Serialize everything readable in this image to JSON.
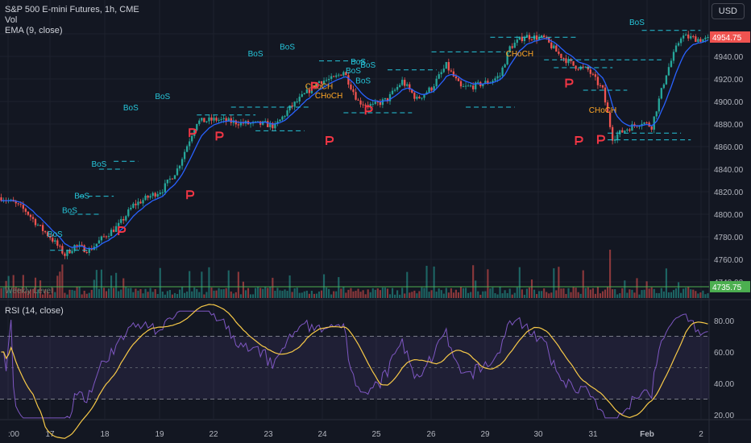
{
  "legend": {
    "symbol": "S&P 500 E-mini Futures, 1h, CME",
    "vol": "Vol",
    "ema": "EMA (9, close)",
    "rsi": "RSI (14, close)"
  },
  "currency_label": "USD",
  "colors": {
    "background": "#131722",
    "up": "#26a69a",
    "down": "#ef5350",
    "ema": "#2962ff",
    "bos": "#26c6da",
    "choch": "#ffa726",
    "pivot": "#f23645",
    "rsi": "#7e57c2",
    "rsi_ma": "#f7c948",
    "weekly": "#4caf50"
  },
  "chart_data": [
    {
      "type": "candlestick",
      "title": "S&P 500 E-mini Futures, 1h, CME",
      "x_labels": [
        ":00",
        "17",
        "18",
        "19",
        "22",
        "23",
        "24",
        "25",
        "26",
        "29",
        "30",
        "31",
        "Feb",
        "2"
      ],
      "y_ticks": [
        4740,
        4760,
        4780,
        4800,
        4820,
        4840,
        4860,
        4880,
        4900,
        4920,
        4940,
        4960
      ],
      "ylim": [
        4732,
        4972
      ],
      "price_anchors": [
        [
          0,
          4815
        ],
        [
          5,
          4810
        ],
        [
          10,
          4803
        ],
        [
          16,
          4788
        ],
        [
          20,
          4780
        ],
        [
          26,
          4764
        ],
        [
          30,
          4772
        ],
        [
          36,
          4768
        ],
        [
          42,
          4780
        ],
        [
          48,
          4790
        ],
        [
          54,
          4808
        ],
        [
          60,
          4815
        ],
        [
          66,
          4822
        ],
        [
          72,
          4840
        ],
        [
          80,
          4882
        ],
        [
          88,
          4884
        ],
        [
          94,
          4882
        ],
        [
          102,
          4880
        ],
        [
          108,
          4880
        ],
        [
          112,
          4878
        ],
        [
          118,
          4894
        ],
        [
          124,
          4906
        ],
        [
          130,
          4918
        ],
        [
          136,
          4920
        ],
        [
          140,
          4927
        ],
        [
          146,
          4900
        ],
        [
          152,
          4896
        ],
        [
          158,
          4902
        ],
        [
          164,
          4918
        ],
        [
          170,
          4902
        ],
        [
          176,
          4912
        ],
        [
          182,
          4932
        ],
        [
          188,
          4912
        ],
        [
          194,
          4914
        ],
        [
          200,
          4918
        ],
        [
          204,
          4923
        ],
        [
          208,
          4948
        ],
        [
          214,
          4958
        ],
        [
          222,
          4956
        ],
        [
          228,
          4942
        ],
        [
          234,
          4932
        ],
        [
          240,
          4928
        ],
        [
          246,
          4910
        ],
        [
          250,
          4868
        ],
        [
          256,
          4876
        ],
        [
          262,
          4882
        ],
        [
          266,
          4878
        ],
        [
          272,
          4925
        ],
        [
          278,
          4958
        ],
        [
          286,
          4955
        ]
      ],
      "ema_label": "EMA (9, close)",
      "weekly_level": {
        "label": "Weekly Level",
        "value": 4735.75
      },
      "price_badge": "4954.75",
      "weekly_badge": "4735.75",
      "annotations": [
        {
          "text": "BoS",
          "x": 22,
          "y": 4780,
          "kind": "bos"
        },
        {
          "text": "BoS",
          "x": 28,
          "y": 4801,
          "kind": "bos"
        },
        {
          "text": "BoS",
          "x": 33,
          "y": 4814,
          "kind": "bos"
        },
        {
          "text": "BoS",
          "x": 40,
          "y": 4842,
          "kind": "bos"
        },
        {
          "text": "BoS",
          "x": 53,
          "y": 4892,
          "kind": "bos"
        },
        {
          "text": "BoS",
          "x": 66,
          "y": 4902,
          "kind": "bos"
        },
        {
          "text": "BoS",
          "x": 104,
          "y": 4940,
          "kind": "bos"
        },
        {
          "text": "BoS",
          "x": 117,
          "y": 4946,
          "kind": "bos"
        },
        {
          "text": "BoS",
          "x": 146,
          "y": 4933,
          "kind": "bos"
        },
        {
          "text": "BoS",
          "x": 150,
          "y": 4930,
          "kind": "bos"
        },
        {
          "text": "BoS",
          "x": 148,
          "y": 4916,
          "kind": "bos"
        },
        {
          "text": "BoS",
          "x": 144,
          "y": 4925,
          "kind": "bos"
        },
        {
          "text": "BoS",
          "x": 260,
          "y": 4968,
          "kind": "bos"
        },
        {
          "text": "CHoCH",
          "x": 130,
          "y": 4911,
          "kind": "choch"
        },
        {
          "text": "CHoCH",
          "x": 134,
          "y": 4903,
          "kind": "choch"
        },
        {
          "text": "CHoCH",
          "x": 212,
          "y": 4940,
          "kind": "choch"
        },
        {
          "text": "CHoCH",
          "x": 246,
          "y": 4890,
          "kind": "choch"
        }
      ]
    },
    {
      "type": "bar",
      "title": "Vol"
    },
    {
      "type": "line",
      "title": "RSI (14, close)",
      "y_ticks": [
        20,
        40,
        60,
        80
      ],
      "ylim": [
        15,
        88
      ],
      "band": [
        30,
        70
      ],
      "midline": 50
    }
  ]
}
